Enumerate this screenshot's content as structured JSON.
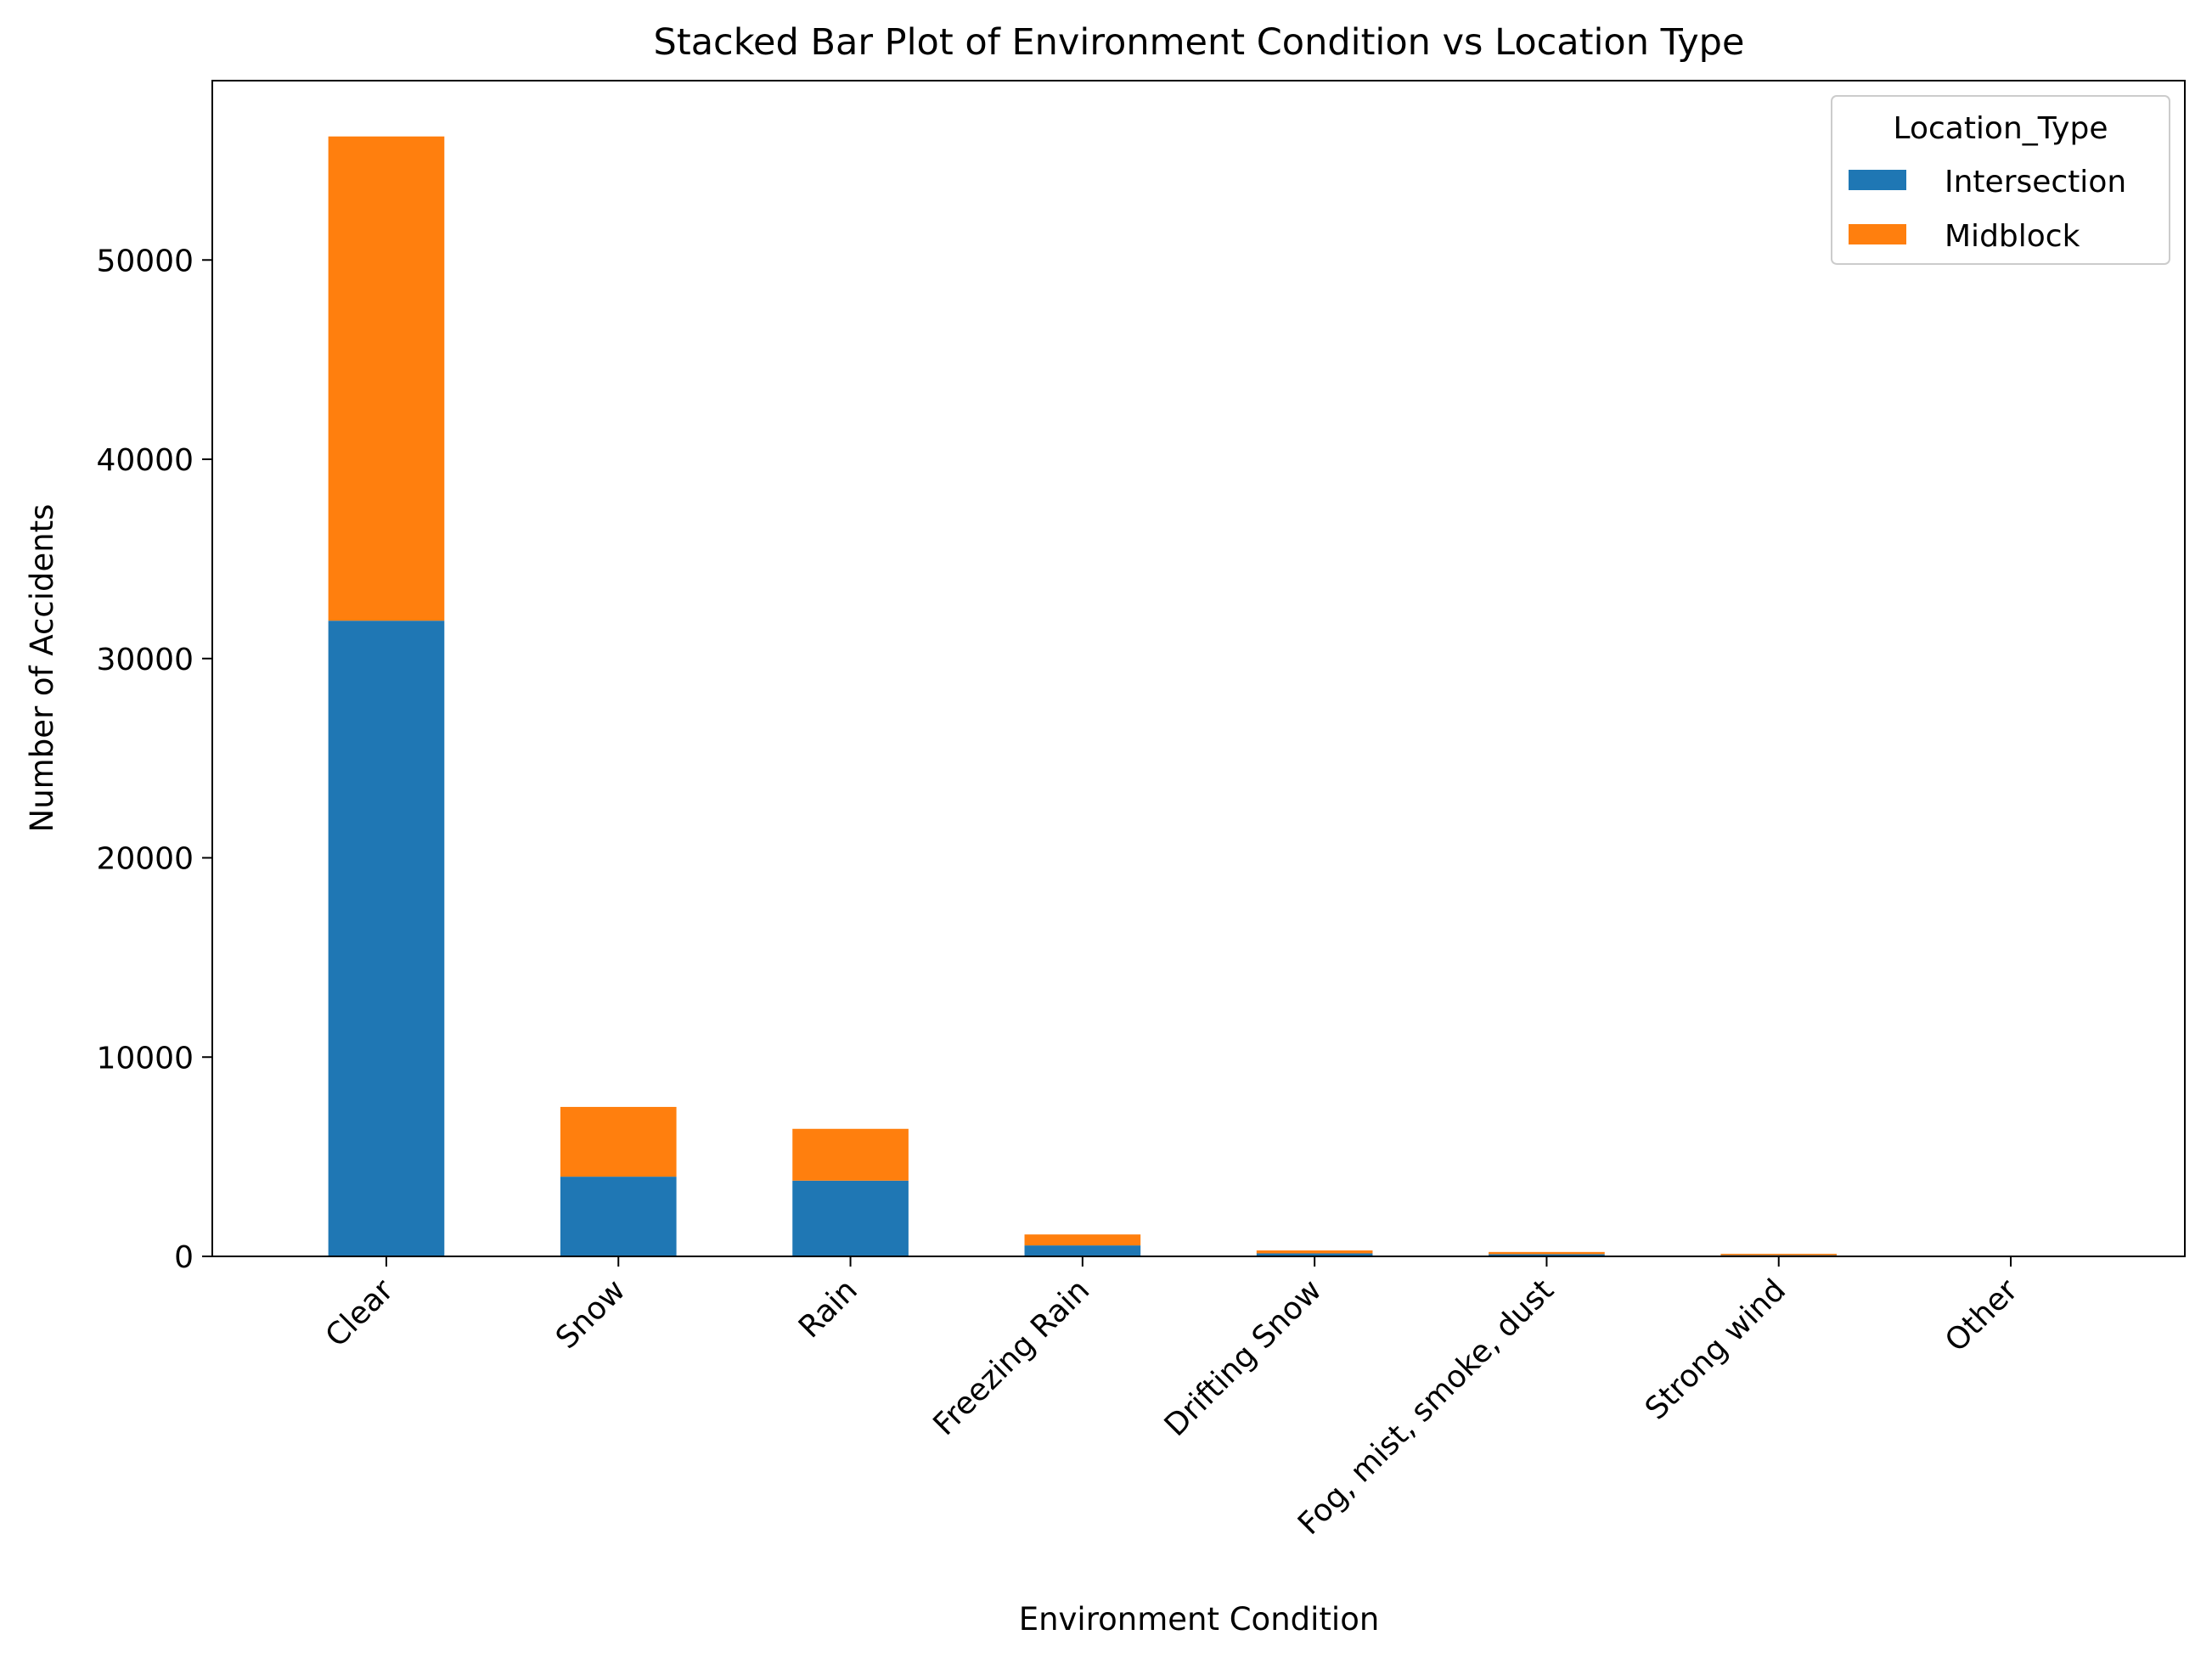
{
  "chart_data": {
    "type": "bar",
    "stacked": true,
    "title": "Stacked Bar Plot of Environment Condition vs Location Type",
    "xlabel": "Environment Condition",
    "ylabel": "Number of Accidents",
    "categories": [
      "Clear",
      "Snow",
      "Rain",
      "Freezing Rain",
      "Drifting Snow",
      "Fog, mist, smoke, dust",
      "Strong wind",
      "Other"
    ],
    "series": [
      {
        "name": "Intersection",
        "color": "#1f77b4",
        "values": [
          31900,
          4000,
          3800,
          550,
          150,
          110,
          60,
          20
        ]
      },
      {
        "name": "Midblock",
        "color": "#ff7f0e",
        "values": [
          24300,
          3500,
          2600,
          550,
          150,
          110,
          70,
          20
        ]
      }
    ],
    "ylim": [
      0,
      59000
    ],
    "yticks": [
      0,
      10000,
      20000,
      30000,
      40000,
      50000
    ],
    "grid": false,
    "legend": {
      "title": "Location_Type",
      "placement": "top-right"
    }
  }
}
